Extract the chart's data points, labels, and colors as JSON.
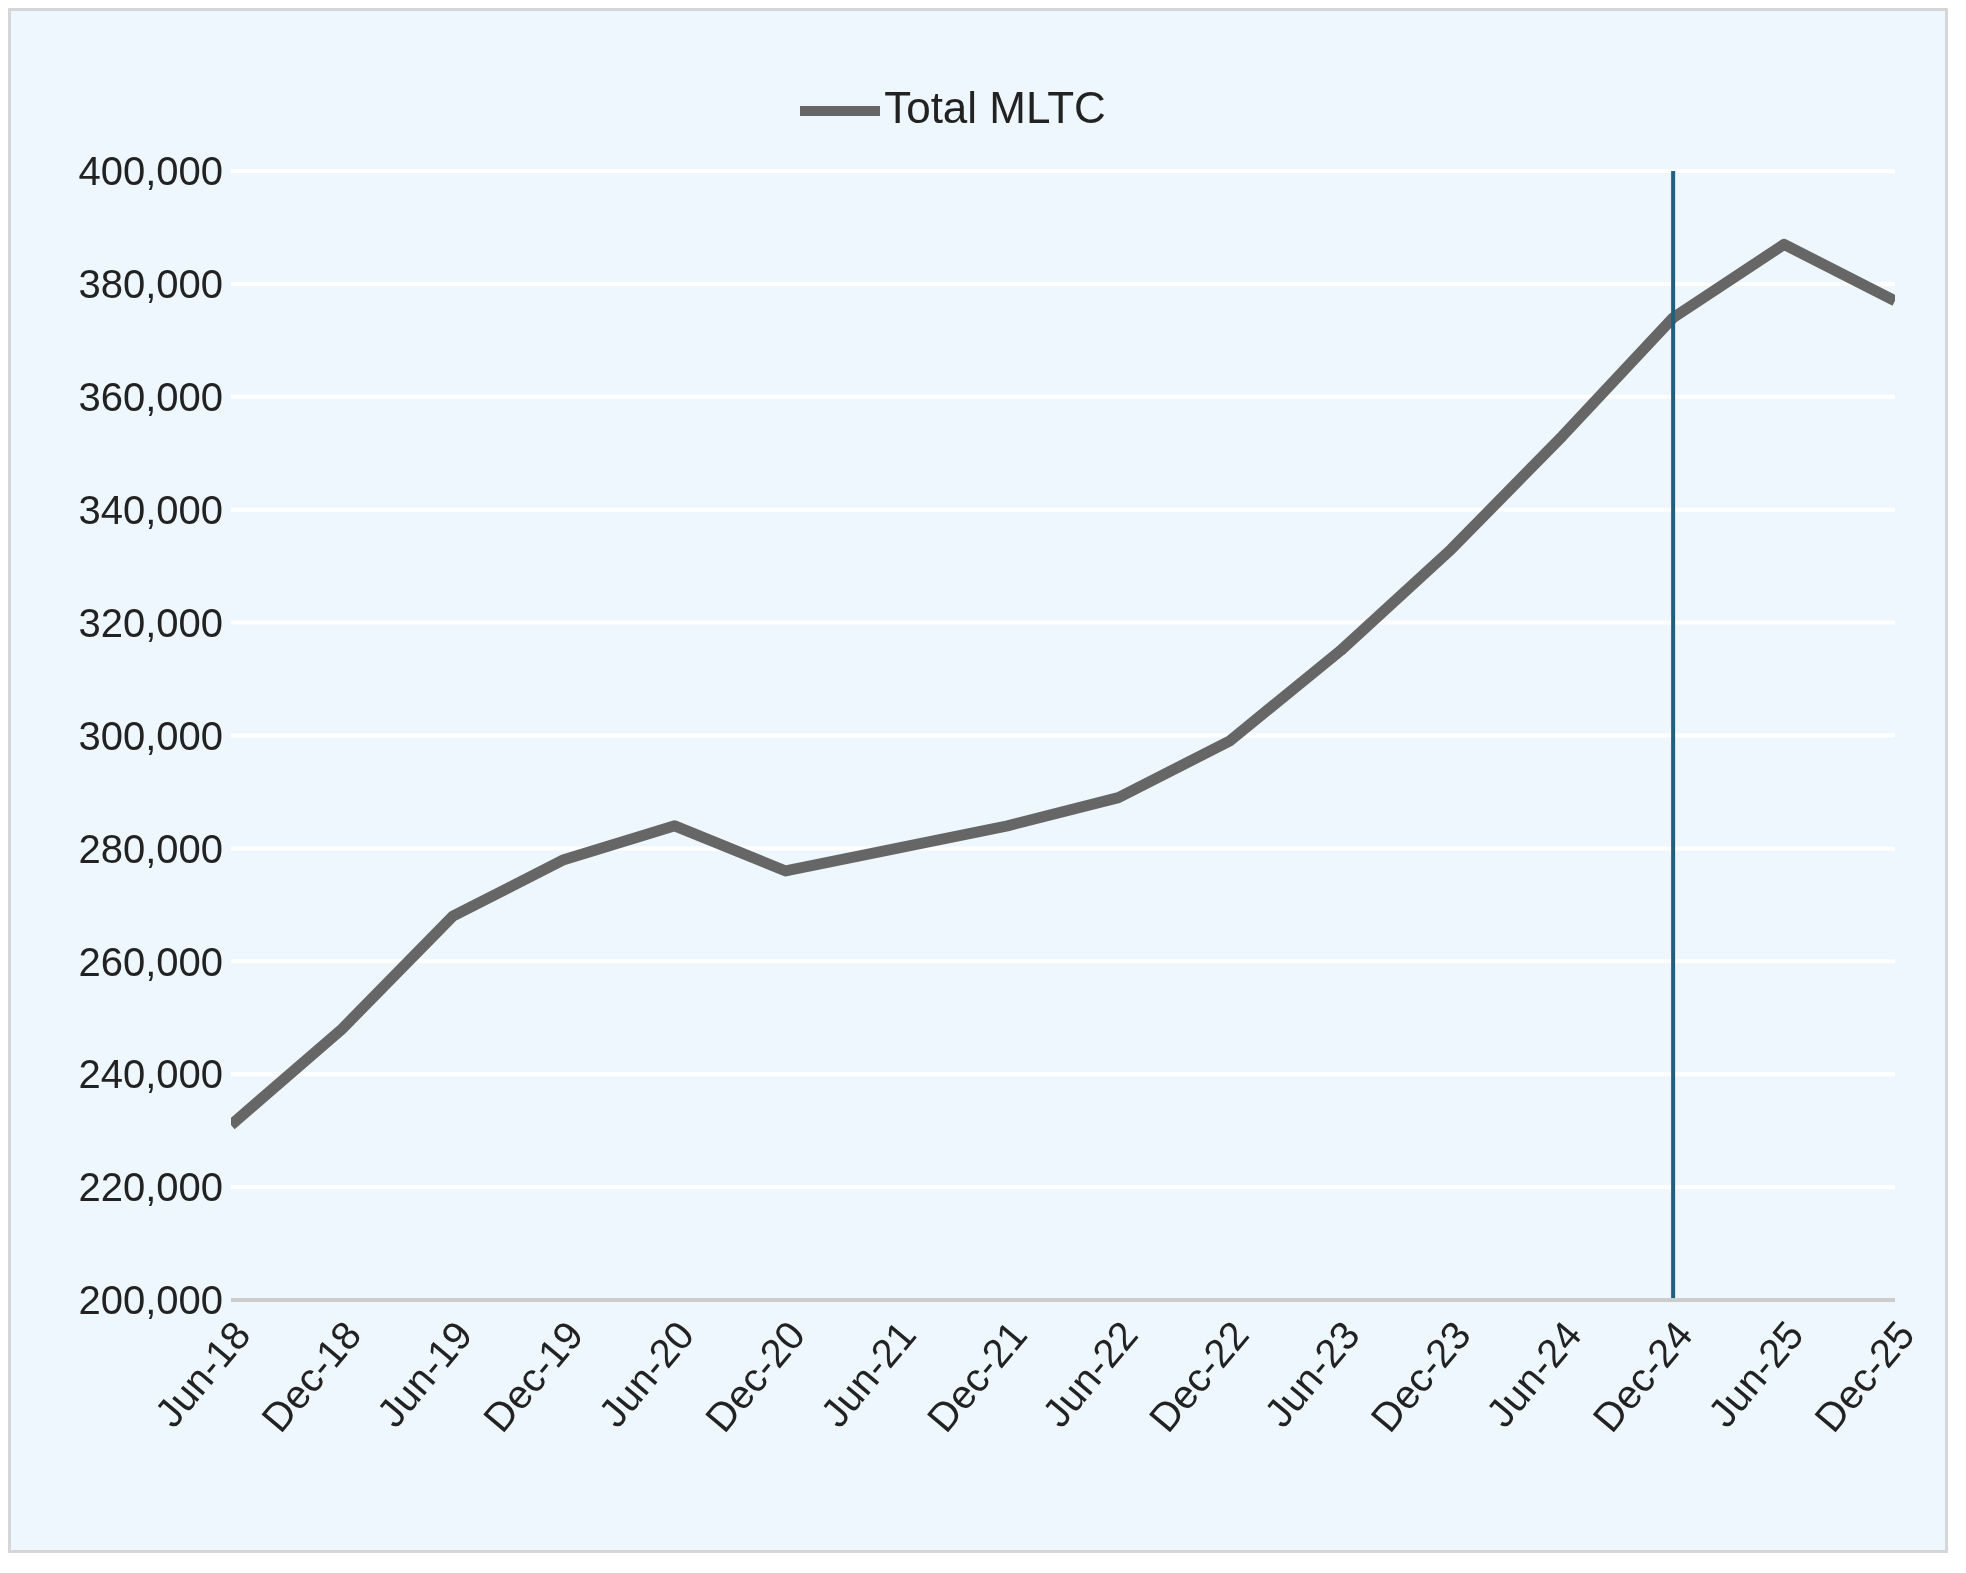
{
  "chart_data": {
    "type": "line",
    "categories": [
      "Jun-18",
      "Dec-18",
      "Jun-19",
      "Dec-19",
      "Jun-20",
      "Dec-20",
      "Jun-21",
      "Dec-21",
      "Jun-22",
      "Dec-22",
      "Jun-23",
      "Dec-23",
      "Jun-24",
      "Dec-24",
      "Jun-25",
      "Dec-25"
    ],
    "series": [
      {
        "name": "Total MLTC",
        "color": "#666666",
        "values": [
          231000,
          248000,
          268000,
          278000,
          284000,
          276000,
          280000,
          284000,
          289000,
          299000,
          315000,
          333000,
          353000,
          374000,
          387000,
          377000
        ]
      }
    ],
    "ylim": [
      200000,
      400000
    ],
    "yticks": [
      {
        "value": 200000,
        "label": "200,000"
      },
      {
        "value": 220000,
        "label": "220,000"
      },
      {
        "value": 240000,
        "label": "240,000"
      },
      {
        "value": 260000,
        "label": "260,000"
      },
      {
        "value": 280000,
        "label": "280,000"
      },
      {
        "value": 300000,
        "label": "300,000"
      },
      {
        "value": 320000,
        "label": "320,000"
      },
      {
        "value": 340000,
        "label": "340,000"
      },
      {
        "value": 360000,
        "label": "360,000"
      },
      {
        "value": 380000,
        "label": "380,000"
      },
      {
        "value": 400000,
        "label": "400,000"
      }
    ],
    "ref_lines": [
      {
        "axis": "x",
        "value": "Dec-24",
        "color": "#1f5f7f"
      }
    ],
    "grid": "y",
    "legend": "top",
    "marker": "none",
    "line_style": "solid"
  }
}
